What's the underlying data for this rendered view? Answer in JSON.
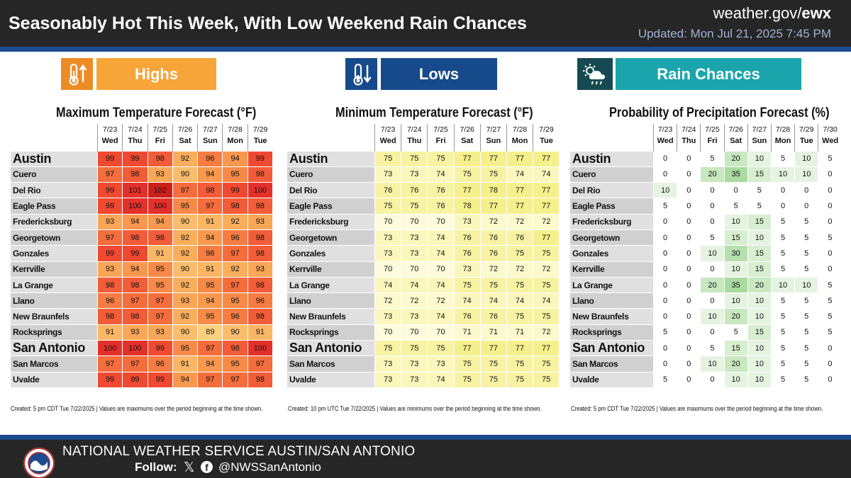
{
  "header": {
    "title": "Seasonably Hot This Week, With Low Weekend Rain Chances",
    "site_prefix": "weather.gov/",
    "site_office": "ewx",
    "updated": "Updated: Mon Jul 21, 2025 7:45 PM"
  },
  "badges": {
    "highs": "Highs",
    "lows": "Lows",
    "rain": "Rain Chances"
  },
  "colors": {
    "header_bg": "#262626",
    "accent_blue": "#1d4a8f",
    "highs_orange": "#f7a438",
    "lows_blue": "#174a8a",
    "rain_teal": "#1aa5ad"
  },
  "highs": {
    "title": "Maximum Temperature Forecast (°F)",
    "dates": [
      "7/23",
      "7/24",
      "7/25",
      "7/26",
      "7/27",
      "7/28",
      "7/29"
    ],
    "days": [
      "Wed",
      "Thu",
      "Fri",
      "Sat",
      "Sun",
      "Mon",
      "Tue"
    ],
    "rows": [
      {
        "city": "Austin",
        "big": true,
        "values": [
          99,
          99,
          98,
          92,
          96,
          94,
          99
        ]
      },
      {
        "city": "Cuero",
        "values": [
          97,
          98,
          93,
          90,
          94,
          95,
          98
        ]
      },
      {
        "city": "Del Rio",
        "values": [
          99,
          101,
          102,
          97,
          98,
          99,
          100
        ]
      },
      {
        "city": "Eagle Pass",
        "values": [
          99,
          100,
          100,
          95,
          97,
          98,
          98
        ]
      },
      {
        "city": "Fredericksburg",
        "values": [
          93,
          94,
          94,
          90,
          91,
          92,
          93
        ]
      },
      {
        "city": "Georgetown",
        "values": [
          97,
          98,
          98,
          92,
          94,
          96,
          98
        ]
      },
      {
        "city": "Gonzales",
        "values": [
          99,
          99,
          91,
          92,
          96,
          97,
          98
        ]
      },
      {
        "city": "Kerrville",
        "values": [
          93,
          94,
          95,
          90,
          91,
          92,
          93
        ]
      },
      {
        "city": "La Grange",
        "values": [
          98,
          98,
          95,
          92,
          95,
          97,
          98
        ]
      },
      {
        "city": "Llano",
        "values": [
          96,
          97,
          97,
          93,
          94,
          95,
          96
        ]
      },
      {
        "city": "New Braunfels",
        "values": [
          98,
          98,
          97,
          92,
          95,
          96,
          98
        ]
      },
      {
        "city": "Rocksprings",
        "values": [
          91,
          93,
          93,
          90,
          89,
          90,
          91
        ]
      },
      {
        "city": "San Antonio",
        "big": true,
        "values": [
          100,
          100,
          99,
          95,
          97,
          98,
          100
        ]
      },
      {
        "city": "San Marcos",
        "values": [
          97,
          97,
          96,
          91,
          94,
          95,
          97
        ]
      },
      {
        "city": "Uvalde",
        "values": [
          99,
          99,
          99,
          94,
          97,
          97,
          98
        ]
      }
    ],
    "note": "Created: 5 pm CDT Tue 7/22/2025 | Values are maximums over the period beginning at the time shown."
  },
  "lows": {
    "title": "Minimum Temperature Forecast (°F)",
    "dates": [
      "7/23",
      "7/24",
      "7/25",
      "7/26",
      "7/27",
      "7/28",
      "7/29"
    ],
    "days": [
      "Wed",
      "Thu",
      "Fri",
      "Sat",
      "Sun",
      "Mon",
      "Tue"
    ],
    "rows": [
      {
        "city": "Austin",
        "big": true,
        "values": [
          75,
          75,
          75,
          77,
          77,
          77,
          77
        ]
      },
      {
        "city": "Cuero",
        "values": [
          73,
          73,
          74,
          75,
          75,
          74,
          74
        ]
      },
      {
        "city": "Del Rio",
        "values": [
          76,
          76,
          76,
          77,
          78,
          77,
          77
        ]
      },
      {
        "city": "Eagle Pass",
        "values": [
          75,
          75,
          76,
          78,
          77,
          77,
          77
        ]
      },
      {
        "city": "Fredericksburg",
        "values": [
          70,
          70,
          70,
          73,
          72,
          72,
          72
        ]
      },
      {
        "city": "Georgetown",
        "values": [
          73,
          73,
          74,
          76,
          76,
          76,
          77
        ]
      },
      {
        "city": "Gonzales",
        "values": [
          73,
          73,
          74,
          76,
          76,
          75,
          75
        ]
      },
      {
        "city": "Kerrville",
        "values": [
          70,
          70,
          70,
          73,
          72,
          72,
          72
        ]
      },
      {
        "city": "La Grange",
        "values": [
          74,
          74,
          74,
          75,
          75,
          75,
          75
        ]
      },
      {
        "city": "Llano",
        "values": [
          72,
          72,
          72,
          74,
          74,
          74,
          74
        ]
      },
      {
        "city": "New Braunfels",
        "values": [
          73,
          73,
          74,
          76,
          76,
          75,
          75
        ]
      },
      {
        "city": "Rocksprings",
        "values": [
          70,
          70,
          70,
          71,
          71,
          71,
          72
        ]
      },
      {
        "city": "San Antonio",
        "big": true,
        "values": [
          75,
          75,
          75,
          77,
          77,
          77,
          77
        ]
      },
      {
        "city": "San Marcos",
        "values": [
          73,
          73,
          73,
          75,
          75,
          75,
          75
        ]
      },
      {
        "city": "Uvalde",
        "values": [
          73,
          73,
          74,
          75,
          75,
          75,
          75
        ]
      }
    ],
    "note": "Created: 10 pm UTC Tue 7/22/2025 | Values are minimums over the period beginning at the time shown."
  },
  "rain": {
    "title": "Probability of Precipitation Forecast (%)",
    "dates": [
      "7/23",
      "7/24",
      "7/25",
      "7/26",
      "7/27",
      "7/28",
      "7/29",
      "7/30"
    ],
    "days": [
      "Wed",
      "Thu",
      "Fri",
      "Sat",
      "Sun",
      "Mon",
      "Tue",
      "Wed"
    ],
    "rows": [
      {
        "city": "Austin",
        "big": true,
        "values": [
          0,
          0,
          5,
          20,
          10,
          5,
          10,
          5
        ]
      },
      {
        "city": "Cuero",
        "values": [
          0,
          0,
          20,
          35,
          15,
          10,
          10,
          0
        ]
      },
      {
        "city": "Del Rio",
        "values": [
          10,
          0,
          0,
          0,
          5,
          0,
          0,
          0
        ]
      },
      {
        "city": "Eagle Pass",
        "values": [
          5,
          0,
          0,
          5,
          5,
          0,
          0,
          0
        ]
      },
      {
        "city": "Fredericksburg",
        "values": [
          0,
          0,
          0,
          10,
          15,
          5,
          5,
          0
        ]
      },
      {
        "city": "Georgetown",
        "values": [
          0,
          0,
          5,
          15,
          10,
          5,
          5,
          5
        ]
      },
      {
        "city": "Gonzales",
        "values": [
          0,
          0,
          10,
          30,
          15,
          5,
          5,
          0
        ]
      },
      {
        "city": "Kerrville",
        "values": [
          0,
          0,
          0,
          10,
          15,
          5,
          5,
          0
        ]
      },
      {
        "city": "La Grange",
        "values": [
          0,
          0,
          20,
          35,
          20,
          10,
          10,
          5
        ]
      },
      {
        "city": "Llano",
        "values": [
          0,
          0,
          0,
          10,
          10,
          5,
          5,
          5
        ]
      },
      {
        "city": "New Braunfels",
        "values": [
          0,
          0,
          10,
          20,
          10,
          5,
          5,
          5
        ]
      },
      {
        "city": "Rocksprings",
        "values": [
          5,
          0,
          0,
          5,
          15,
          5,
          5,
          5
        ]
      },
      {
        "city": "San Antonio",
        "big": true,
        "values": [
          0,
          0,
          5,
          15,
          10,
          5,
          5,
          0
        ]
      },
      {
        "city": "San Marcos",
        "values": [
          0,
          0,
          10,
          20,
          10,
          5,
          5,
          0
        ]
      },
      {
        "city": "Uvalde",
        "values": [
          5,
          0,
          0,
          10,
          10,
          5,
          5,
          0
        ]
      }
    ],
    "note": "Created: 5 pm CDT Tue 7/22/2025 | Values are maximums over the period beginning at the time shown."
  },
  "footer": {
    "org": "NATIONAL WEATHER SERVICE AUSTIN/SAN ANTONIO",
    "follow": "Follow:",
    "handle": "@NWSSanAntonio"
  },
  "icons": {
    "highs": "thermometer-up-icon",
    "lows": "thermometer-down-icon",
    "rain": "sun-cloud-rain-icon",
    "x": "x-logo-icon",
    "facebook": "facebook-icon",
    "logo": "nws-logo"
  }
}
